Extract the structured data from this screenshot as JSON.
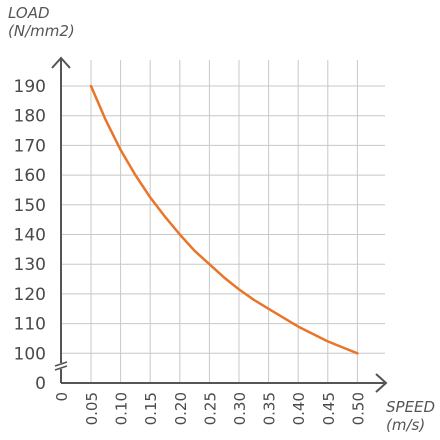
{
  "chart_data": {
    "type": "line",
    "ylabel_line1": "LOAD",
    "ylabel_line2": "(N/mm2)",
    "xlabel_line1": "SPEED",
    "xlabel_line2": "(m/s)",
    "y_ticks": [
      "0",
      "100",
      "110",
      "120",
      "130",
      "140",
      "150",
      "160",
      "170",
      "180",
      "190"
    ],
    "x_ticks": [
      "0",
      "0.05",
      "0.10",
      "0.15",
      "0.20",
      "0.25",
      "0.30",
      "0.35",
      "0.40",
      "0.45",
      "0.50"
    ],
    "y_axis_break": true,
    "series": [
      {
        "color": "#e8752a",
        "x": [
          0.05,
          0.075,
          0.1,
          0.125,
          0.15,
          0.175,
          0.2,
          0.225,
          0.25,
          0.275,
          0.3,
          0.325,
          0.35,
          0.375,
          0.4,
          0.425,
          0.45,
          0.475,
          0.5
        ],
        "y": [
          190,
          178.5,
          168.5,
          160,
          152.5,
          146,
          140,
          134.5,
          130,
          125.5,
          121.5,
          118,
          115,
          112,
          109,
          106.5,
          104,
          102,
          100
        ]
      }
    ],
    "grid": true,
    "grid_color": "#c8c8c8",
    "axis_color": "#555555"
  }
}
